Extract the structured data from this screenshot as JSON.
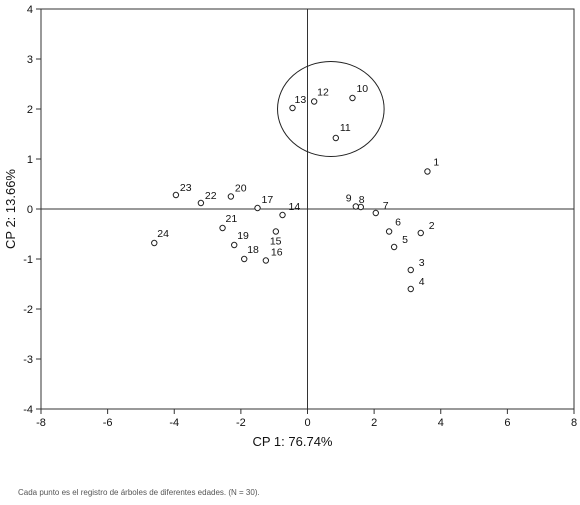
{
  "chart_data": {
    "type": "scatter",
    "xlabel": "CP 1: 76.74%",
    "ylabel": "CP 2: 13.66%",
    "xlim": [
      -8,
      8
    ],
    "ylim": [
      -4,
      4
    ],
    "xticks": [
      -8,
      -6,
      -4,
      -2,
      0,
      2,
      4,
      6,
      8
    ],
    "yticks": [
      -4,
      -3,
      -2,
      -1,
      0,
      1,
      2,
      3,
      4
    ],
    "grid": false,
    "reference_lines": {
      "x": 0,
      "y": 0
    },
    "highlight_ellipse": {
      "cx": 0.7,
      "cy": 2.0,
      "rx": 1.6,
      "ry": 0.95
    },
    "points": [
      {
        "label": "1",
        "x": 3.6,
        "y": 0.75
      },
      {
        "label": "2",
        "x": 3.4,
        "y": -0.48
      },
      {
        "label": "3",
        "x": 3.1,
        "y": -1.22
      },
      {
        "label": "4",
        "x": 3.1,
        "y": -1.6
      },
      {
        "label": "5",
        "x": 2.6,
        "y": -0.76
      },
      {
        "label": "6",
        "x": 2.45,
        "y": -0.45
      },
      {
        "label": "7",
        "x": 2.05,
        "y": -0.08
      },
      {
        "label": "8",
        "x": 1.6,
        "y": 0.04
      },
      {
        "label": "9",
        "x": 1.45,
        "y": 0.05
      },
      {
        "label": "10",
        "x": 1.35,
        "y": 2.22
      },
      {
        "label": "11",
        "x": 0.85,
        "y": 1.42
      },
      {
        "label": "12",
        "x": 0.2,
        "y": 2.15
      },
      {
        "label": "13",
        "x": -0.45,
        "y": 2.02
      },
      {
        "label": "14",
        "x": -0.75,
        "y": -0.12
      },
      {
        "label": "15",
        "x": -0.95,
        "y": -0.45
      },
      {
        "label": "16",
        "x": -1.25,
        "y": -1.03
      },
      {
        "label": "17",
        "x": -1.5,
        "y": 0.02
      },
      {
        "label": "18",
        "x": -1.9,
        "y": -1.0
      },
      {
        "label": "19",
        "x": -2.2,
        "y": -0.72
      },
      {
        "label": "20",
        "x": -2.3,
        "y": 0.25
      },
      {
        "label": "21",
        "x": -2.55,
        "y": -0.38
      },
      {
        "label": "22",
        "x": -3.2,
        "y": 0.12
      },
      {
        "label": "23",
        "x": -3.95,
        "y": 0.28
      },
      {
        "label": "24",
        "x": -4.6,
        "y": -0.68
      }
    ]
  },
  "caption": "Cada punto es el registro de árboles de diferentes edades. (N = 30)."
}
